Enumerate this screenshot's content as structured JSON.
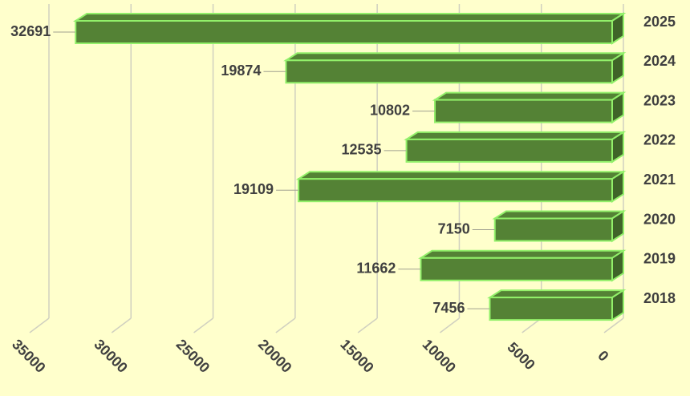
{
  "chart_data": {
    "type": "bar3d-horizontal",
    "categories": [
      "2025",
      "2024",
      "2023",
      "2022",
      "2021",
      "2020",
      "2019",
      "2018"
    ],
    "values": [
      32691,
      19874,
      10802,
      12535,
      19109,
      7150,
      11662,
      7456
    ],
    "color": "#548235",
    "edge_color": "#92f06a",
    "xlim": [
      0,
      35000
    ],
    "xticks": [
      0,
      5000,
      10000,
      15000,
      20000,
      25000,
      30000,
      35000
    ],
    "x_reversed": true,
    "grid": true
  }
}
